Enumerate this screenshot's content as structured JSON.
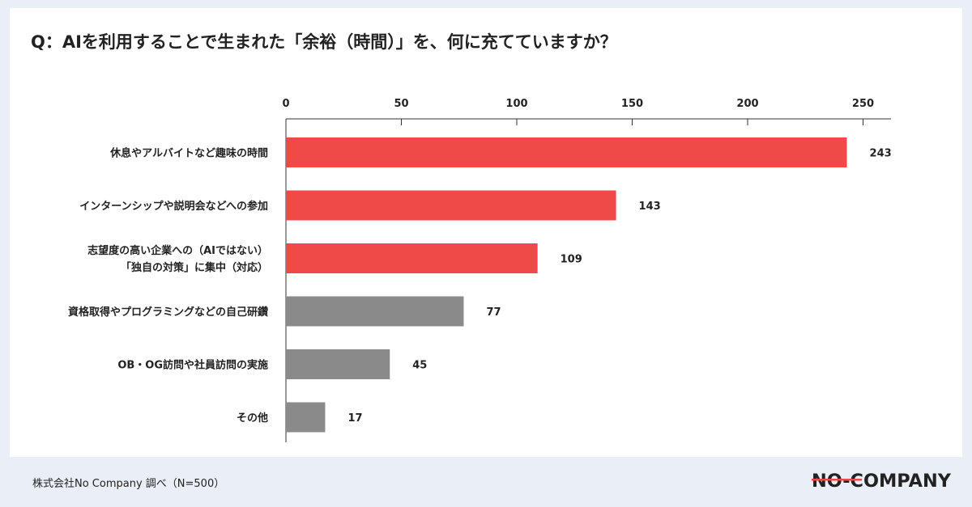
{
  "page": {
    "title": "Q：AIを利用することで生まれた「余裕（時間）」を、何に充てていますか？",
    "footer_note": "株式会社No Company 調べ（N=500）",
    "logo_text": "NO-COMPANY"
  },
  "colors": {
    "highlight": "#f04a48",
    "neutral": "#8a8a8a",
    "axis": "#333333",
    "text": "#222222",
    "background": "#eaeef6",
    "card": "#ffffff"
  },
  "chart_data": {
    "type": "bar",
    "orientation": "horizontal",
    "categories": [
      "休息やアルバイトなど趣味の時間",
      "インターンシップや説明会などへの参加",
      "志望度の高い企業への（AIではない）\n「独自の対策」に集中（対応）",
      "資格取得やプログラミングなどの自己研鑽",
      "OB・OG訪問や社員訪問の実施",
      "その他"
    ],
    "values": [
      243,
      143,
      109,
      77,
      45,
      17
    ],
    "bar_colors": [
      "#f04a48",
      "#f04a48",
      "#f04a48",
      "#8a8a8a",
      "#8a8a8a",
      "#8a8a8a"
    ],
    "xlim": [
      0,
      260
    ],
    "xticks": [
      0,
      50,
      100,
      150,
      200,
      250
    ],
    "x_axis_position": "top",
    "title": "Q：AIを利用することで生まれた「余裕（時間）」を、何に充てていますか？",
    "xlabel": "",
    "ylabel": "",
    "grid": false,
    "legend": "none"
  }
}
